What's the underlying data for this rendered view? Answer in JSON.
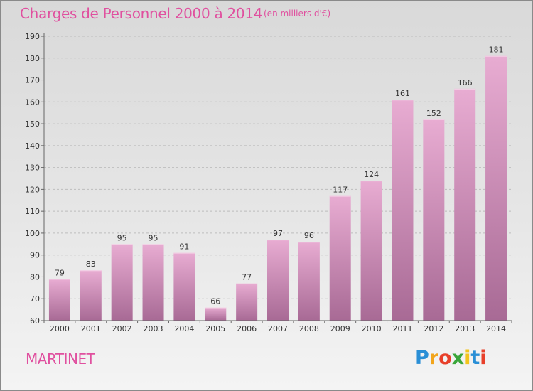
{
  "header": {
    "title": "Charges de Personnel 2000 à 2014",
    "subtitle": "(en milliers d'€)"
  },
  "footer": {
    "commune": "MARTINET",
    "logo_letters": [
      "P",
      "r",
      "o",
      "x",
      "i",
      "t",
      "i"
    ],
    "logo_colors": [
      "#2a8fd6",
      "#f2a51c",
      "#e8402a",
      "#3aa63a",
      "#f2c41c",
      "#2a8fd6",
      "#e8402a"
    ]
  },
  "colors": {
    "bar_light": "#e8acd2",
    "bar_dark": "#a86a95",
    "accent": "#e0509f"
  },
  "chart_data": {
    "type": "bar",
    "categories": [
      "2000",
      "2001",
      "2002",
      "2003",
      "2004",
      "2005",
      "2006",
      "2007",
      "2008",
      "2009",
      "2010",
      "2011",
      "2012",
      "2013",
      "2014"
    ],
    "values": [
      79,
      83,
      95,
      95,
      91,
      66,
      77,
      97,
      96,
      117,
      124,
      161,
      152,
      166,
      181
    ],
    "data_labels": [
      "79",
      "83",
      "95",
      "95",
      "91",
      "66",
      "77",
      "97",
      "96",
      "117",
      "124",
      "161",
      "152",
      "166",
      "181"
    ],
    "yticks": [
      "60",
      "70",
      "80",
      "90",
      "100",
      "110",
      "120",
      "130",
      "140",
      "150",
      "160",
      "170",
      "180",
      "190"
    ],
    "ylim": [
      60,
      190
    ],
    "grid": true,
    "title": "Charges de Personnel 2000 à 2014",
    "xlabel": "",
    "ylabel": ""
  }
}
